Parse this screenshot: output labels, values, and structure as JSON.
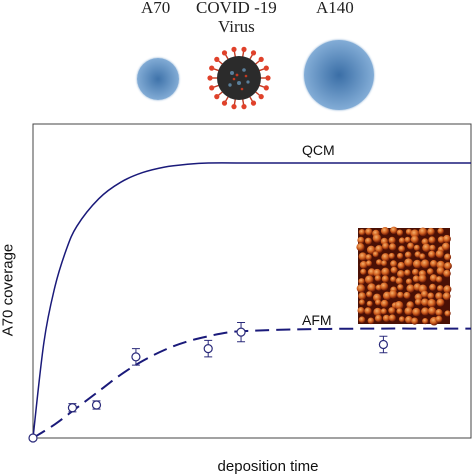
{
  "particles": [
    {
      "name": "A70",
      "label": "A70",
      "color": "#6f9fcf"
    },
    {
      "name": "COVID",
      "label": "COVID -19",
      "sublabel": "Virus",
      "color": "#2b2b2b",
      "spike_color": "#e0412a"
    },
    {
      "name": "A140",
      "label": "A140",
      "color": "#6f9fcf"
    }
  ],
  "chart_data": {
    "type": "line",
    "title": "",
    "xlabel": "deposition time",
    "ylabel": "A70 coverage",
    "xlim": [
      0,
      10
    ],
    "ylim": [
      0,
      1
    ],
    "grid": false,
    "series": [
      {
        "name": "QCM",
        "style": "solid",
        "color": "#1a1a7a",
        "x": [
          0,
          0.25,
          0.5,
          0.75,
          1.0,
          1.5,
          2.0,
          2.5,
          3.0,
          3.5,
          4.0,
          5.0,
          6.0,
          7.0,
          8.0,
          9.0,
          10.0
        ],
        "y": [
          0,
          0.35,
          0.55,
          0.68,
          0.77,
          0.87,
          0.93,
          0.965,
          0.985,
          0.995,
          1.0,
          1.0,
          1.0,
          1.0,
          1.0,
          1.0,
          1.0
        ]
      },
      {
        "name": "AFM",
        "style": "dashed",
        "color": "#1a1a7a",
        "x": [
          0,
          0.5,
          1.0,
          1.5,
          2.0,
          2.5,
          3.0,
          3.5,
          4.0,
          4.5,
          5.0,
          6.0,
          7.0,
          8.0,
          9.0,
          10.0
        ],
        "y": [
          0,
          0.05,
          0.11,
          0.17,
          0.23,
          0.28,
          0.32,
          0.35,
          0.37,
          0.385,
          0.39,
          0.395,
          0.397,
          0.398,
          0.398,
          0.398
        ]
      }
    ],
    "points": {
      "series": "AFM",
      "color": "#2a2a7a",
      "x": [
        0,
        0.9,
        1.45,
        2.35,
        4.0,
        4.75,
        8.0
      ],
      "y": [
        0,
        0.11,
        0.12,
        0.295,
        0.325,
        0.385,
        0.34
      ],
      "err": [
        0,
        0.015,
        0.015,
        0.03,
        0.03,
        0.035,
        0.03
      ]
    },
    "inset": {
      "type": "afm-image",
      "colors": [
        "#5a1406",
        "#c4511b",
        "#f0a15c"
      ]
    }
  }
}
